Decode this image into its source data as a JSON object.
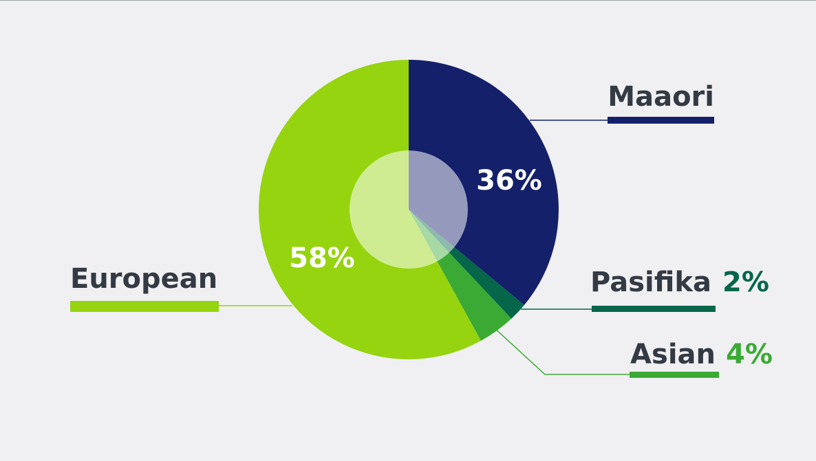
{
  "chart_data": {
    "type": "pie",
    "categories": [
      "Maaori",
      "Pasifika",
      "Asian",
      "European"
    ],
    "values": [
      36,
      2,
      4,
      58
    ],
    "value_labels": [
      "36%",
      "2%",
      "4%",
      "58%"
    ],
    "colors": [
      "#14206a",
      "#05664a",
      "#3aaa35",
      "#95d40e"
    ]
  }
}
